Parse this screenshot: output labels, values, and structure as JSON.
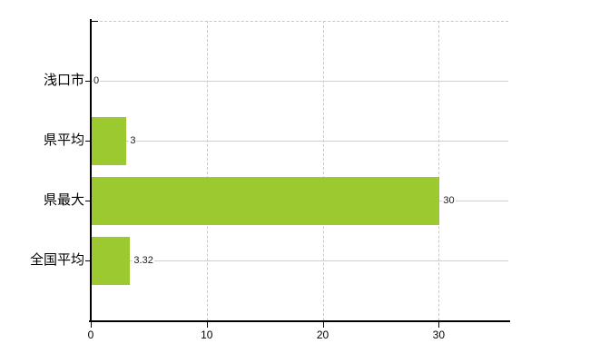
{
  "chart_data": {
    "type": "bar",
    "orientation": "horizontal",
    "categories": [
      "浅口市",
      "県平均",
      "県最大",
      "全国平均"
    ],
    "values": [
      0,
      3,
      30,
      3.32
    ],
    "value_labels": [
      "0",
      "3",
      "30",
      "3.32"
    ],
    "x_ticks": [
      0,
      10,
      20,
      30
    ],
    "x_tick_labels": [
      "0",
      "10",
      "20",
      "30"
    ],
    "xlim": [
      0,
      36
    ],
    "grid": true,
    "legend": "none",
    "colors": {
      "bar": "#9cc92f",
      "axis": "#000000",
      "grid_solid": "#ccd3c9",
      "grid_dashed": "#c7c7cc",
      "text": "#000000",
      "background": "#ffffff"
    }
  }
}
